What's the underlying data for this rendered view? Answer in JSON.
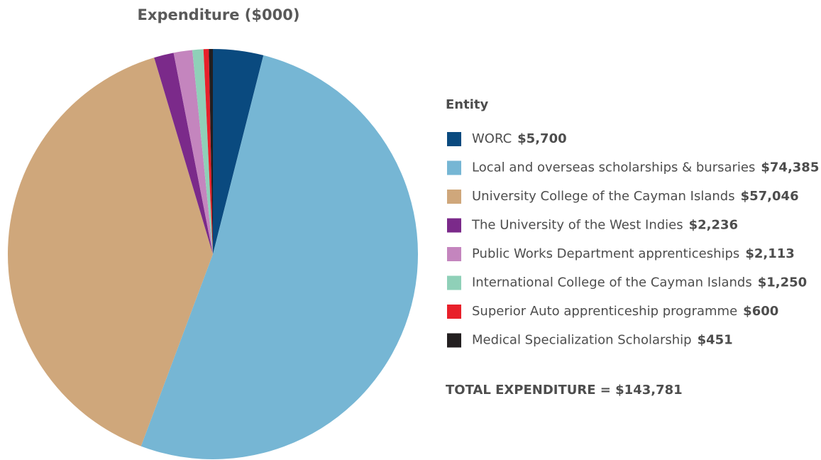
{
  "chart_data": {
    "type": "pie",
    "title": "Expenditure ($000)",
    "legend_title": "Entity",
    "categories": [
      "WORC",
      "Local and overseas scholarships & bursaries",
      "University College of the Cayman Islands",
      "The University of the West Indies",
      "Public Works Department apprenticeships",
      "International College of the Cayman Islands",
      "Superior Auto apprenticeship programme",
      "Medical Specialization Scholarship"
    ],
    "values": [
      5700,
      74385,
      57046,
      2236,
      2113,
      1250,
      600,
      451
    ],
    "value_labels": [
      "$5,700",
      "$74,385",
      "$57,046",
      "$2,236",
      "$2,113",
      "$1,250",
      "$600",
      "$451"
    ],
    "colors": [
      "#0a4a7f",
      "#76b6d4",
      "#cfa77b",
      "#7b2a8a",
      "#c485be",
      "#8fd0b8",
      "#e8202a",
      "#231f20"
    ],
    "legend": "right",
    "annotation": "TOTAL EXPENDITURE = $143,781"
  }
}
